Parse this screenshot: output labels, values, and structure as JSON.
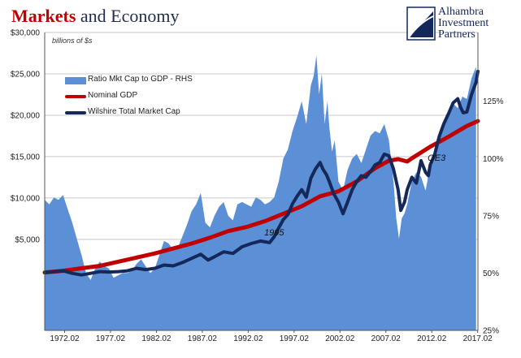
{
  "header": {
    "title_part1": "Markets",
    "title_part2": " and Economy",
    "brand_line1": "Alhambra",
    "brand_line2": "Investment",
    "brand_line3": "Partners",
    "units_label": "billions of $s"
  },
  "colors": {
    "ratio_fill": "#5b8fd6",
    "gdp_line": "#c00000",
    "wilshire_line": "#14285a",
    "title_red": "#c00000",
    "title_navy": "#1f2d4e"
  },
  "chart_data": {
    "type": "line",
    "title": "Markets and Economy",
    "ylabel": "billions of $s",
    "x_range": [
      1970.0,
      2017.2
    ],
    "x_ticks": [
      "1972.02",
      "1977.02",
      "1982.02",
      "1987.02",
      "1992.02",
      "1997.02",
      "2002.02",
      "2007.02",
      "2012.02",
      "2017.02"
    ],
    "x_tick_values": [
      1972.17,
      1977.17,
      1982.17,
      1987.17,
      1992.17,
      1997.17,
      2002.17,
      2007.17,
      2012.17,
      2017.17
    ],
    "y_left": {
      "ylim": [
        -6000,
        30000
      ],
      "ticks": [
        5000,
        10000,
        15000,
        20000,
        25000,
        30000
      ],
      "tick_labels": [
        "$5,000",
        "$10,000",
        "$15,000",
        "$20,000",
        "$25,000",
        "$30,000"
      ]
    },
    "y_right": {
      "ylim": [
        25,
        155
      ],
      "ticks": [
        25,
        50,
        75,
        100,
        125
      ],
      "tick_labels": [
        "25%",
        "50%",
        "75%",
        "100%",
        "125%"
      ]
    },
    "grid": "horizontal",
    "legend_position": "upper-left",
    "annotations": [
      {
        "text": "1995",
        "x": 1995.0,
        "y": 5500
      },
      {
        "text": "QE3",
        "x": 2012.7,
        "y": 14500
      }
    ],
    "series": [
      {
        "name": "Ratio Mkt Cap to GDP - RHS",
        "type": "area",
        "axis": "right",
        "x": [
          1970.0,
          1970.5,
          1971.0,
          1971.5,
          1972.0,
          1972.5,
          1973.0,
          1973.5,
          1974.0,
          1974.5,
          1975.0,
          1975.5,
          1976.0,
          1976.5,
          1977.0,
          1977.5,
          1978.0,
          1978.5,
          1979.0,
          1979.5,
          1980.0,
          1980.5,
          1981.0,
          1981.5,
          1982.0,
          1982.5,
          1983.0,
          1983.5,
          1984.0,
          1984.5,
          1985.0,
          1985.5,
          1986.0,
          1986.5,
          1987.0,
          1987.5,
          1988.0,
          1988.5,
          1989.0,
          1989.5,
          1990.0,
          1990.5,
          1991.0,
          1991.5,
          1992.0,
          1992.5,
          1993.0,
          1993.5,
          1994.0,
          1994.5,
          1995.0,
          1995.5,
          1996.0,
          1996.5,
          1997.0,
          1997.5,
          1998.0,
          1998.5,
          1999.0,
          1999.3,
          1999.6,
          1999.9,
          2000.2,
          2000.5,
          2000.8,
          2001.0,
          2001.3,
          2001.6,
          2002.0,
          2002.5,
          2003.0,
          2003.5,
          2004.0,
          2004.5,
          2005.0,
          2005.5,
          2006.0,
          2006.5,
          2007.0,
          2007.5,
          2008.0,
          2008.3,
          2008.6,
          2008.9,
          2009.2,
          2009.5,
          2010.0,
          2010.5,
          2011.0,
          2011.5,
          2012.0,
          2012.5,
          2013.0,
          2013.5,
          2014.0,
          2014.5,
          2015.0,
          2015.5,
          2016.0,
          2016.5,
          2017.0
        ],
        "values": [
          82,
          80,
          83,
          82,
          84,
          78,
          72,
          65,
          58,
          50,
          47,
          52,
          55,
          53,
          52,
          48,
          49,
          50,
          50,
          51,
          54,
          56,
          53,
          50,
          52,
          58,
          64,
          63,
          60,
          61,
          66,
          71,
          77,
          80,
          85,
          72,
          70,
          75,
          79,
          81,
          75,
          73,
          80,
          81,
          80,
          79,
          83,
          82,
          80,
          81,
          83,
          90,
          100,
          104,
          112,
          118,
          125,
          115,
          132,
          136,
          145,
          128,
          137,
          115,
          125,
          114,
          103,
          108,
          90,
          86,
          95,
          100,
          102,
          98,
          104,
          110,
          112,
          111,
          115,
          108,
          90,
          74,
          65,
          74,
          76,
          80,
          90,
          94,
          92,
          86,
          97,
          103,
          108,
          116,
          118,
          124,
          122,
          127,
          126,
          135,
          140
        ]
      },
      {
        "name": "Nominal GDP",
        "type": "line",
        "axis": "left",
        "x": [
          1970.0,
          1972.0,
          1974.0,
          1976.0,
          1978.0,
          1980.0,
          1982.0,
          1984.0,
          1986.0,
          1988.0,
          1990.0,
          1992.0,
          1994.0,
          1996.0,
          1998.0,
          2000.0,
          2002.0,
          2004.0,
          2006.0,
          2007.5,
          2008.5,
          2009.5,
          2010.0,
          2012.0,
          2014.0,
          2016.0,
          2017.2
        ],
        "values": [
          1000,
          1200,
          1500,
          1800,
          2300,
          2800,
          3300,
          3900,
          4500,
          5200,
          6000,
          6500,
          7200,
          8100,
          9000,
          10200,
          10800,
          12000,
          13600,
          14500,
          14700,
          14400,
          14800,
          16200,
          17400,
          18700,
          19300
        ]
      },
      {
        "name": "Wilshire Total Market Cap",
        "type": "line",
        "axis": "left",
        "x": [
          1970.0,
          1971.0,
          1972.0,
          1973.0,
          1974.0,
          1975.0,
          1976.0,
          1977.0,
          1978.0,
          1979.0,
          1980.0,
          1981.0,
          1982.0,
          1983.0,
          1984.0,
          1985.0,
          1986.0,
          1987.0,
          1987.8,
          1988.5,
          1989.5,
          1990.5,
          1991.5,
          1992.5,
          1993.5,
          1994.5,
          1995.0,
          1995.5,
          1996.0,
          1996.5,
          1997.0,
          1997.5,
          1998.0,
          1998.5,
          1999.0,
          1999.5,
          2000.0,
          2000.3,
          2000.7,
          2001.0,
          2001.5,
          2002.0,
          2002.5,
          2003.0,
          2003.5,
          2004.0,
          2004.5,
          2005.0,
          2005.5,
          2006.0,
          2006.5,
          2007.0,
          2007.5,
          2008.0,
          2008.5,
          2008.8,
          2009.2,
          2009.5,
          2010.0,
          2010.5,
          2011.0,
          2011.5,
          2011.8,
          2012.0,
          2012.5,
          2013.0,
          2013.5,
          2014.0,
          2014.5,
          2015.0,
          2015.3,
          2015.6,
          2016.0,
          2016.5,
          2017.0,
          2017.2
        ],
        "values": [
          1000,
          1100,
          1200,
          900,
          700,
          900,
          1100,
          1050,
          1100,
          1200,
          1500,
          1350,
          1500,
          1900,
          1800,
          2200,
          2700,
          3200,
          2500,
          2900,
          3500,
          3300,
          4100,
          4500,
          4800,
          4600,
          5300,
          6400,
          7400,
          8000,
          9300,
          10200,
          11000,
          10100,
          12400,
          13500,
          14300,
          13500,
          12800,
          12000,
          10500,
          9500,
          8100,
          9500,
          11000,
          12000,
          12700,
          12500,
          13200,
          14000,
          14300,
          15300,
          15100,
          13500,
          11000,
          8500,
          9500,
          11000,
          12500,
          11800,
          14500,
          13100,
          12700,
          14000,
          15300,
          17500,
          19000,
          20200,
          21500,
          22000,
          21000,
          20300,
          20400,
          22500,
          24000,
          25300
        ]
      }
    ]
  }
}
